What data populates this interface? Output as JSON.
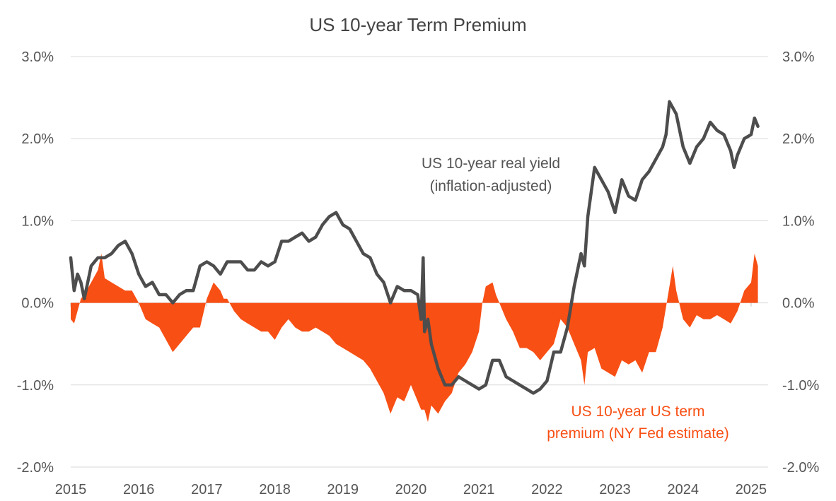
{
  "chart_data": {
    "type": "area",
    "title": "US 10-year Term Premium",
    "xlabel": "",
    "ylabel": "",
    "xlim": [
      2015.0,
      2025.25
    ],
    "ylim": [
      -2.0,
      3.0
    ],
    "x_ticks": [
      2015,
      2016,
      2017,
      2018,
      2019,
      2020,
      2021,
      2022,
      2023,
      2024,
      2025
    ],
    "y_ticks": [
      -2.0,
      -1.0,
      0.0,
      1.0,
      2.0,
      3.0
    ],
    "y_tick_labels": [
      "-2.0%",
      "-1.0%",
      "0.0%",
      "1.0%",
      "2.0%",
      "3.0%"
    ],
    "grid": true,
    "series": [
      {
        "name": "US 10-year real yield (inflation-adjusted)",
        "label_lines": [
          "US 10-year real yield",
          "(inflation-adjusted)"
        ],
        "kind": "line",
        "color": "#4d4d4d",
        "x": [
          2015.0,
          2015.05,
          2015.1,
          2015.15,
          2015.2,
          2015.3,
          2015.4,
          2015.5,
          2015.6,
          2015.7,
          2015.8,
          2015.9,
          2016.0,
          2016.1,
          2016.2,
          2016.3,
          2016.4,
          2016.5,
          2016.6,
          2016.7,
          2016.8,
          2016.9,
          2017.0,
          2017.1,
          2017.2,
          2017.3,
          2017.4,
          2017.5,
          2017.6,
          2017.7,
          2017.8,
          2017.9,
          2018.0,
          2018.1,
          2018.2,
          2018.3,
          2018.4,
          2018.5,
          2018.6,
          2018.7,
          2018.8,
          2018.9,
          2019.0,
          2019.1,
          2019.2,
          2019.3,
          2019.4,
          2019.5,
          2019.6,
          2019.7,
          2019.8,
          2019.9,
          2020.0,
          2020.1,
          2020.15,
          2020.18,
          2020.2,
          2020.25,
          2020.3,
          2020.4,
          2020.5,
          2020.6,
          2020.7,
          2020.8,
          2020.9,
          2021.0,
          2021.1,
          2021.2,
          2021.3,
          2021.4,
          2021.5,
          2021.6,
          2021.7,
          2021.8,
          2021.9,
          2022.0,
          2022.1,
          2022.2,
          2022.3,
          2022.4,
          2022.5,
          2022.55,
          2022.6,
          2022.65,
          2022.7,
          2022.8,
          2022.9,
          2023.0,
          2023.1,
          2023.2,
          2023.3,
          2023.4,
          2023.5,
          2023.6,
          2023.7,
          2023.75,
          2023.8,
          2023.9,
          2024.0,
          2024.1,
          2024.2,
          2024.3,
          2024.4,
          2024.5,
          2024.6,
          2024.7,
          2024.75,
          2024.8,
          2024.9,
          2025.0,
          2025.05,
          2025.1
        ],
        "values": [
          0.55,
          0.15,
          0.35,
          0.25,
          0.05,
          0.45,
          0.55,
          0.55,
          0.6,
          0.7,
          0.75,
          0.6,
          0.35,
          0.2,
          0.25,
          0.1,
          0.1,
          0.0,
          0.1,
          0.15,
          0.15,
          0.45,
          0.5,
          0.45,
          0.35,
          0.5,
          0.5,
          0.5,
          0.4,
          0.4,
          0.5,
          0.45,
          0.5,
          0.75,
          0.75,
          0.8,
          0.85,
          0.75,
          0.8,
          0.95,
          1.05,
          1.1,
          0.95,
          0.9,
          0.75,
          0.6,
          0.55,
          0.35,
          0.25,
          0.0,
          0.2,
          0.15,
          0.15,
          0.1,
          -0.2,
          0.55,
          -0.35,
          -0.2,
          -0.5,
          -0.8,
          -1.0,
          -1.0,
          -0.9,
          -0.95,
          -1.0,
          -1.05,
          -1.0,
          -0.7,
          -0.7,
          -0.9,
          -0.95,
          -1.0,
          -1.05,
          -1.1,
          -1.05,
          -0.95,
          -0.6,
          -0.6,
          -0.3,
          0.2,
          0.6,
          0.45,
          1.05,
          1.35,
          1.65,
          1.5,
          1.35,
          1.1,
          1.5,
          1.3,
          1.25,
          1.5,
          1.6,
          1.75,
          1.9,
          2.05,
          2.45,
          2.3,
          1.9,
          1.7,
          1.9,
          2.0,
          2.2,
          2.1,
          2.05,
          1.85,
          1.65,
          1.8,
          2.0,
          2.05,
          2.25,
          2.15
        ]
      },
      {
        "name": "US 10-year US term premium (NY Fed estimate)",
        "label_lines": [
          "US 10-year US term",
          "premium (NY Fed estimate)"
        ],
        "kind": "area",
        "color": "#f84f14",
        "x": [
          2015.0,
          2015.05,
          2015.1,
          2015.15,
          2015.2,
          2015.3,
          2015.4,
          2015.45,
          2015.5,
          2015.6,
          2015.7,
          2015.8,
          2015.9,
          2016.0,
          2016.1,
          2016.2,
          2016.3,
          2016.4,
          2016.5,
          2016.6,
          2016.7,
          2016.8,
          2016.9,
          2017.0,
          2017.1,
          2017.2,
          2017.25,
          2017.3,
          2017.4,
          2017.5,
          2017.6,
          2017.7,
          2017.8,
          2017.9,
          2018.0,
          2018.1,
          2018.2,
          2018.3,
          2018.4,
          2018.5,
          2018.6,
          2018.7,
          2018.8,
          2018.9,
          2019.0,
          2019.1,
          2019.2,
          2019.3,
          2019.4,
          2019.5,
          2019.6,
          2019.7,
          2019.8,
          2019.9,
          2020.0,
          2020.1,
          2020.15,
          2020.2,
          2020.25,
          2020.3,
          2020.4,
          2020.5,
          2020.6,
          2020.7,
          2020.8,
          2020.9,
          2021.0,
          2021.05,
          2021.1,
          2021.2,
          2021.25,
          2021.3,
          2021.4,
          2021.5,
          2021.6,
          2021.7,
          2021.8,
          2021.9,
          2022.0,
          2022.1,
          2022.2,
          2022.3,
          2022.4,
          2022.5,
          2022.55,
          2022.6,
          2022.7,
          2022.8,
          2022.9,
          2023.0,
          2023.1,
          2023.2,
          2023.3,
          2023.4,
          2023.5,
          2023.6,
          2023.7,
          2023.75,
          2023.8,
          2023.85,
          2023.9,
          2024.0,
          2024.1,
          2024.2,
          2024.3,
          2024.4,
          2024.5,
          2024.6,
          2024.7,
          2024.8,
          2024.9,
          2025.0,
          2025.05,
          2025.1
        ],
        "values": [
          -0.2,
          -0.25,
          -0.1,
          0.05,
          0.1,
          0.25,
          0.4,
          0.6,
          0.3,
          0.25,
          0.2,
          0.15,
          0.15,
          0.0,
          -0.2,
          -0.25,
          -0.3,
          -0.45,
          -0.6,
          -0.5,
          -0.4,
          -0.3,
          -0.3,
          0.05,
          0.25,
          0.15,
          0.05,
          0.05,
          -0.1,
          -0.2,
          -0.25,
          -0.3,
          -0.35,
          -0.35,
          -0.45,
          -0.3,
          -0.2,
          -0.3,
          -0.35,
          -0.35,
          -0.3,
          -0.35,
          -0.4,
          -0.5,
          -0.55,
          -0.6,
          -0.65,
          -0.7,
          -0.8,
          -0.95,
          -1.1,
          -1.35,
          -1.15,
          -1.2,
          -1.0,
          -1.2,
          -1.3,
          -1.3,
          -1.45,
          -1.25,
          -1.35,
          -1.2,
          -1.1,
          -0.85,
          -0.75,
          -0.6,
          -0.35,
          0.0,
          0.2,
          0.25,
          0.1,
          0.0,
          -0.2,
          -0.35,
          -0.55,
          -0.55,
          -0.6,
          -0.7,
          -0.6,
          -0.5,
          -0.2,
          -0.3,
          -0.5,
          -0.7,
          -1.0,
          -0.6,
          -0.55,
          -0.8,
          -0.85,
          -0.9,
          -0.7,
          -0.75,
          -0.7,
          -0.85,
          -0.6,
          -0.6,
          -0.3,
          -0.05,
          0.2,
          0.45,
          0.15,
          -0.2,
          -0.3,
          -0.15,
          -0.2,
          -0.2,
          -0.15,
          -0.2,
          -0.25,
          -0.1,
          0.15,
          0.25,
          0.6,
          0.45
        ]
      }
    ]
  }
}
